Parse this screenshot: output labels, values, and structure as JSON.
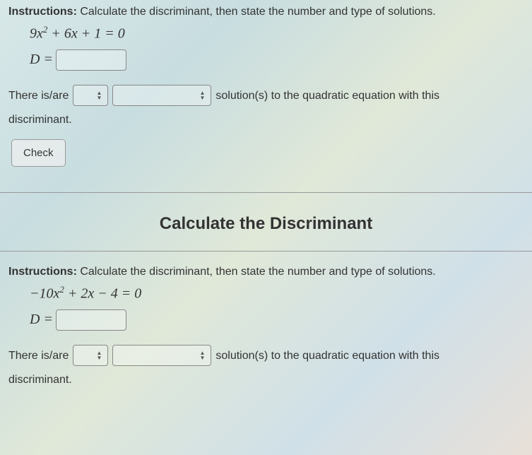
{
  "problem1": {
    "instructions_label": "Instructions:",
    "instructions_text": " Calculate the discriminant, then state the number and type of solutions.",
    "equation": "9x² + 6x + 1 = 0",
    "d_label": "D =",
    "sentence_part1": "There is/are",
    "sentence_part2": "solution(s) to the quadratic equation with this",
    "sentence_part3": "discriminant.",
    "check_label": "Check"
  },
  "section_title": "Calculate the Discriminant",
  "problem2": {
    "instructions_label": "Instructions:",
    "instructions_text": " Calculate the discriminant, then state the number and type of solutions.",
    "equation": "−10x² + 2x − 4 = 0",
    "d_label": "D =",
    "sentence_part1": "There is/are",
    "sentence_part2": "solution(s) to the quadratic equation with this",
    "sentence_part3": "discriminant."
  },
  "colors": {
    "text": "#333333",
    "border": "#888888",
    "input_bg": "rgba(255,255,255,0.3)"
  }
}
